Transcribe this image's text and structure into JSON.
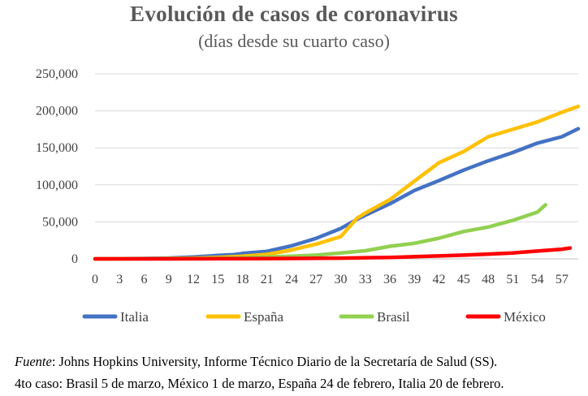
{
  "chart_data": {
    "type": "line",
    "title": "Evolución de casos de coronavirus",
    "subtitle": "(días desde su cuarto caso)",
    "xlabel": "",
    "ylabel": "",
    "ylim": [
      0,
      250000
    ],
    "y_ticks": [
      "0",
      "50,000",
      "100,000",
      "150,000",
      "200,000",
      "250,000"
    ],
    "y_tick_values": [
      0,
      50000,
      100000,
      150000,
      200000,
      250000
    ],
    "x_ticks": [
      "0",
      "3",
      "6",
      "9",
      "12",
      "15",
      "18",
      "21",
      "24",
      "27",
      "30",
      "33",
      "36",
      "39",
      "42",
      "45",
      "48",
      "51",
      "54",
      "57"
    ],
    "x_tick_values": [
      0,
      3,
      6,
      9,
      12,
      15,
      18,
      21,
      24,
      27,
      30,
      33,
      36,
      39,
      42,
      45,
      48,
      51,
      54,
      57
    ],
    "xlim": [
      0,
      59
    ],
    "grid": "horizontal",
    "legend_position": "bottom",
    "series": [
      {
        "name": "Italia",
        "color": "#4472C4",
        "x": [
          0,
          3,
          6,
          9,
          12,
          15,
          17,
          18,
          21,
          24,
          27,
          30,
          32,
          33,
          36,
          39,
          42,
          45,
          48,
          51,
          54,
          57,
          59
        ],
        "y": [
          0,
          200,
          500,
          1100,
          2500,
          4600,
          5800,
          7400,
          10200,
          17600,
          27700,
          41000,
          53500,
          59000,
          74400,
          92400,
          105800,
          119800,
          132500,
          143600,
          156400,
          165000,
          175900
        ]
      },
      {
        "name": "España",
        "color": "#FFC000",
        "x": [
          0,
          3,
          6,
          9,
          12,
          15,
          18,
          21,
          24,
          27,
          30,
          32,
          33,
          36,
          39,
          42,
          45,
          48,
          51,
          54,
          57,
          59
        ],
        "y": [
          0,
          100,
          200,
          500,
          1000,
          2000,
          3500,
          6000,
          12000,
          20000,
          30000,
          55000,
          62000,
          80000,
          105000,
          130000,
          145000,
          165000,
          175000,
          185000,
          198000,
          206000
        ]
      },
      {
        "name": "Brasil",
        "color": "#92D050",
        "x": [
          0,
          3,
          6,
          9,
          12,
          15,
          18,
          21,
          24,
          27,
          30,
          33,
          36,
          39,
          42,
          45,
          48,
          51,
          54,
          55
        ],
        "y": [
          0,
          50,
          100,
          300,
          600,
          1000,
          1500,
          2500,
          3500,
          5000,
          8000,
          11000,
          17000,
          21000,
          28000,
          37000,
          43000,
          52000,
          63000,
          73000
        ]
      },
      {
        "name": "México",
        "color": "#FF0000",
        "x": [
          0,
          3,
          6,
          9,
          12,
          15,
          18,
          21,
          24,
          27,
          30,
          33,
          36,
          39,
          42,
          45,
          48,
          51,
          54,
          57,
          58
        ],
        "y": [
          0,
          10,
          20,
          50,
          100,
          200,
          300,
          400,
          600,
          800,
          1000,
          1500,
          2000,
          3000,
          4000,
          5000,
          6500,
          8000,
          10500,
          13000,
          14700
        ]
      }
    ]
  },
  "source_note": {
    "label": "Fuente",
    "text": ": Johns Hopkins University, Informe Técnico Diario de la Secretaría de Salud (SS).",
    "line2": "4to caso: Brasil 5 de marzo, México 1 de marzo, España 24 de febrero, Italia 20 de febrero."
  }
}
